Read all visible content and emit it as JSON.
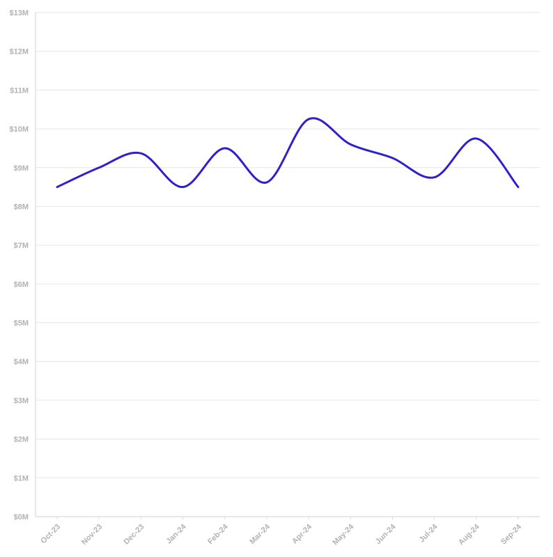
{
  "chart_data": {
    "type": "line",
    "title": "",
    "xlabel": "",
    "ylabel": "",
    "categories": [
      "Oct-23",
      "Nov-23",
      "Dec-23",
      "Jan-24",
      "Feb-24",
      "Mar-24",
      "Apr-24",
      "May-24",
      "Jun-24",
      "Jul-24",
      "Aug-24",
      "Sep-24"
    ],
    "series": [
      {
        "values": [
          8.5,
          9.0,
          9.37,
          8.5,
          9.5,
          8.62,
          10.25,
          9.6,
          9.25,
          8.75,
          9.75,
          8.5
        ],
        "color": "#2f20cf"
      }
    ],
    "ylim": [
      0,
      13
    ],
    "yticks": [
      0,
      1,
      2,
      3,
      4,
      5,
      6,
      7,
      8,
      9,
      10,
      11,
      12,
      13
    ],
    "ytick_labels": [
      "$0M",
      "$1M",
      "$2M",
      "$3M",
      "$4M",
      "$5M",
      "$6M",
      "$7M",
      "$8M",
      "$9M",
      "$10M",
      "$11M",
      "$12M",
      "$13M"
    ],
    "grid": true,
    "legend": "none"
  }
}
